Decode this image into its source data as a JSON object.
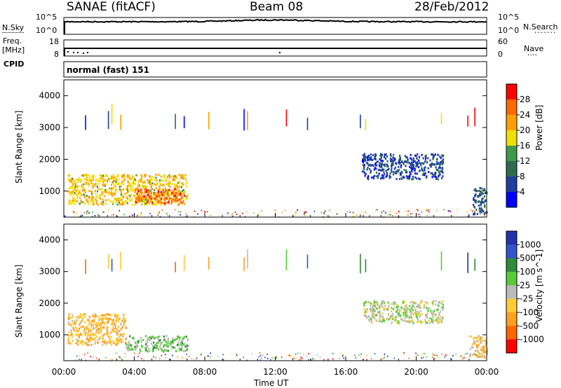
{
  "header": {
    "station": "SANAE (fitACF)",
    "beam": "Beam 08",
    "date": "28/Feb/2012"
  },
  "params": {
    "nsky_label": "N.Sky",
    "nsearch_label": "N.Search",
    "nsky_ticks": [
      "10^5",
      "10^0"
    ],
    "nsearch_ticks": [
      "10^5",
      "10^0"
    ],
    "freq_label_1": "Freq.",
    "freq_label_2": "[MHz]",
    "freq_ticks": [
      "18",
      "8"
    ],
    "nave_label": "Nave",
    "nave_ticks": [
      "60",
      "0"
    ],
    "cpid_label": "CPID",
    "cpid_value": "normal (fast) 151"
  },
  "colors": {
    "power": [
      "#0000ff",
      "#1f3fa0",
      "#2f6b4f",
      "#3c9a4a",
      "#f0e000",
      "#ffa000",
      "#ff6a00",
      "#ff0000"
    ],
    "velocity": [
      "#2233aa",
      "#3355cc",
      "#2f8a3a",
      "#55cc33",
      "#bbbbbb",
      "#ffcc33",
      "#ffa020",
      "#ff6600",
      "#ff0000"
    ]
  },
  "chart_data": [
    {
      "type": "heatmap",
      "title": "Power",
      "xlabel": "",
      "ylabel": "Slant Range [km]",
      "xlim": [
        "00:00",
        "00:00"
      ],
      "x_ticks": [
        "00:00",
        "04:00",
        "08:00",
        "12:00",
        "16:00",
        "20:00",
        "00:00"
      ],
      "ylim": [
        180,
        4500
      ],
      "y_ticks": [
        1000,
        2000,
        3000,
        4000
      ],
      "colorbar": {
        "label": "Power [dB]",
        "ticks": [
          "28",
          "24",
          "20",
          "16",
          "12",
          "8",
          "4"
        ],
        "range": [
          0,
          30
        ]
      },
      "patches": [
        {
          "t0": 0.2,
          "t1": 7.0,
          "r0": 600,
          "r1": 1550,
          "value": 18
        },
        {
          "t0": 4.0,
          "t1": 6.8,
          "r0": 650,
          "r1": 1100,
          "value": 24
        },
        {
          "t0": 16.9,
          "t1": 21.5,
          "r0": 1400,
          "r1": 2200,
          "value": 6
        },
        {
          "t0": 23.2,
          "t1": 24.0,
          "r0": 300,
          "r1": 1150,
          "value": 8
        }
      ]
    },
    {
      "type": "heatmap",
      "title": "Velocity",
      "xlabel": "Time UT",
      "ylabel": "Slant Range [km]",
      "xlim": [
        "00:00",
        "00:00"
      ],
      "x_ticks": [
        "00:00",
        "04:00",
        "08:00",
        "12:00",
        "16:00",
        "20:00",
        "00:00"
      ],
      "ylim": [
        180,
        4500
      ],
      "y_ticks": [
        1000,
        2000,
        3000,
        4000
      ],
      "colorbar": {
        "label": "Velocity [m s^-1]",
        "ticks": [
          "1000",
          "500",
          "100",
          "25",
          "-25",
          "-100",
          "-500",
          "-1000"
        ],
        "range": [
          -1000,
          1000
        ]
      },
      "patches": [
        {
          "t0": 0.2,
          "t1": 3.5,
          "r0": 700,
          "r1": 1700,
          "value": -300
        },
        {
          "t0": 3.5,
          "t1": 7.0,
          "r0": 500,
          "r1": 1000,
          "value": 150
        },
        {
          "t0": 17.0,
          "t1": 21.5,
          "r0": 1400,
          "r1": 2100,
          "value": 0
        },
        {
          "t0": 23.0,
          "t1": 24.0,
          "r0": 300,
          "r1": 1000,
          "value": -200
        }
      ]
    }
  ]
}
